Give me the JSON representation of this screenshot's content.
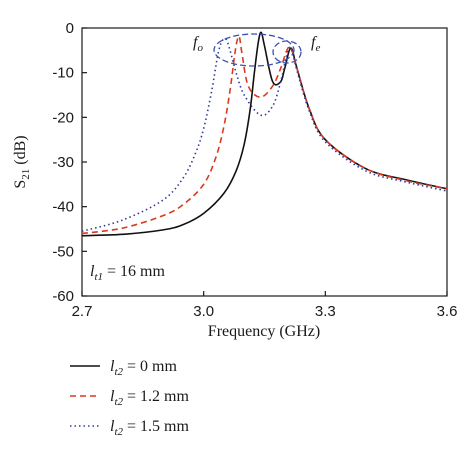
{
  "chart_data": {
    "type": "line",
    "xlabel": "Frequency (GHz)",
    "ylabel_main": "S",
    "ylabel_sub": "21",
    "ylabel_unit": " (dB)",
    "xlim": [
      2.7,
      3.6
    ],
    "ylim": [
      -60,
      0
    ],
    "xticks": [
      "2.7",
      "3.0",
      "3.3",
      "3.6"
    ],
    "yticks": [
      "0",
      "-10",
      "-20",
      "-30",
      "-40",
      "-50",
      "-60"
    ],
    "grid": false,
    "annotation": {
      "var": "l",
      "sub": "t1",
      "text": " = 16 mm"
    },
    "markers": [
      {
        "label": "f",
        "sub": "o"
      },
      {
        "label": "f",
        "sub": "e"
      }
    ],
    "legend": {
      "placement": "below",
      "entries": [
        {
          "var": "l",
          "sub": "t2",
          "text": " = 0 mm"
        },
        {
          "var": "l",
          "sub": "t2",
          "text": " = 1.2 mm"
        },
        {
          "var": "l",
          "sub": "t2",
          "text": " = 1.5 mm"
        }
      ]
    },
    "series": [
      {
        "style": "solid",
        "color": "#111111",
        "x": [
          2.7,
          2.8,
          2.9,
          2.95,
          3.0,
          3.05,
          3.08,
          3.1,
          3.115,
          3.125,
          3.135,
          3.142,
          3.15,
          3.17,
          3.19,
          3.2,
          3.215,
          3.23,
          3.26,
          3.3,
          3.4,
          3.5,
          3.6
        ],
        "y": [
          -46.5,
          -46.2,
          -45.2,
          -44,
          -41.5,
          -37,
          -32,
          -26,
          -18,
          -10,
          -3,
          -1,
          -4,
          -12,
          -12,
          -9,
          -4.5,
          -9,
          -18,
          -25,
          -31.5,
          -34,
          -36
        ]
      },
      {
        "style": "dashed",
        "color": "#d93a1e",
        "x": [
          2.7,
          2.8,
          2.9,
          2.95,
          3.0,
          3.03,
          3.05,
          3.065,
          3.075,
          3.082,
          3.088,
          3.095,
          3.11,
          3.14,
          3.17,
          3.19,
          3.205,
          3.215,
          3.23,
          3.26,
          3.3,
          3.4,
          3.5,
          3.6
        ],
        "y": [
          -46,
          -44.8,
          -42,
          -39.5,
          -35,
          -29,
          -22,
          -14,
          -7,
          -3,
          -2,
          -6,
          -13,
          -15.5,
          -13,
          -9,
          -5,
          -4.5,
          -9,
          -18,
          -25,
          -31.5,
          -34.2,
          -36
        ]
      },
      {
        "style": "dotted",
        "color": "#2e3a9c",
        "x": [
          2.7,
          2.8,
          2.9,
          2.95,
          2.98,
          3.0,
          3.02,
          3.035,
          3.045,
          3.055,
          3.065,
          3.08,
          3.1,
          3.14,
          3.17,
          3.19,
          3.205,
          3.215,
          3.23,
          3.26,
          3.3,
          3.4,
          3.5,
          3.6
        ],
        "y": [
          -45.5,
          -43,
          -38.5,
          -33.5,
          -28,
          -22.5,
          -14,
          -6,
          -3,
          -2.5,
          -5,
          -10,
          -15,
          -19.5,
          -17.5,
          -12,
          -6,
          -4.5,
          -9.5,
          -18.5,
          -25.5,
          -32,
          -34.5,
          -36.5
        ]
      }
    ]
  }
}
